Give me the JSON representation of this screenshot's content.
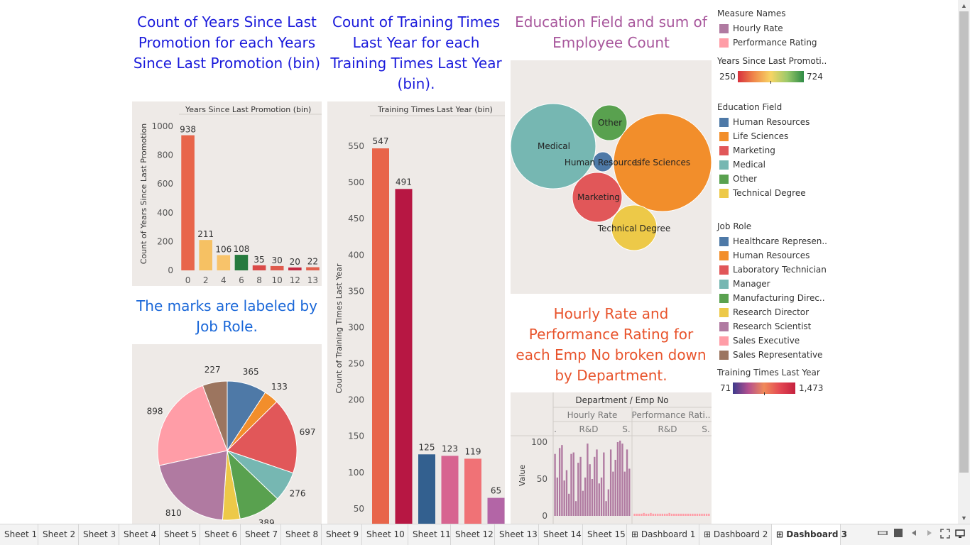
{
  "titles": {
    "promotion": "Count of Years Since Last Promotion for each Years Since Last Promotion (bin)",
    "training": "Count of Training Times Last Year for each Training Times Last Year (bin).",
    "education": "Education Field  and sum of Employee Count",
    "pie": "The marks are labeled by Job Role.",
    "hourly": "Hourly Rate and Performance Rating for each Emp No broken down by Department."
  },
  "colors": {
    "title_blue": "#1a1adb",
    "title_lightblue": "#1866d8",
    "title_purple": "#a8579c",
    "title_orange": "#e8532b",
    "panel_bg": "#eeeae7"
  },
  "chart_data": [
    {
      "id": "promotion",
      "type": "bar",
      "header": "Years Since Last Promotion (bin)",
      "ylabel": "Count of Years Since Last Promotion",
      "categories": [
        "0",
        "2",
        "4",
        "6",
        "8",
        "10",
        "12",
        "13"
      ],
      "values": [
        938,
        211,
        106,
        108,
        35,
        30,
        20,
        22
      ],
      "colors": [
        "#e8654a",
        "#f6c163",
        "#f8c36a",
        "#257a3e",
        "#da4a48",
        "#df5b4d",
        "#c5283f",
        "#e2614d"
      ],
      "yticks": [
        0,
        200,
        400,
        600,
        800,
        1000
      ],
      "ylim": [
        0,
        1000
      ]
    },
    {
      "id": "training",
      "type": "bar",
      "header": "Training Times Last Year (bin)",
      "ylabel": "Count of Training Times Last Year",
      "categories": [
        "",
        "",
        "",
        "",
        "",
        ""
      ],
      "values": [
        547,
        491,
        125,
        123,
        119,
        65
      ],
      "colors": [
        "#e8654a",
        "#b71743",
        "#33608f",
        "#d76490",
        "#f07276",
        "#b365a6"
      ],
      "yticks": [
        50,
        100,
        150,
        200,
        250,
        300,
        350,
        400,
        450,
        500,
        550
      ],
      "ylim": [
        0,
        550
      ]
    },
    {
      "id": "education",
      "type": "bubble",
      "bubbles": [
        {
          "label": "Medical",
          "color": "#76b7b2"
        },
        {
          "label": "Other",
          "color": "#59a14f"
        },
        {
          "label": "Human Resources",
          "color": "#4e79a7"
        },
        {
          "label": "Life Sciences",
          "color": "#f28e2b"
        },
        {
          "label": "Marketing",
          "color": "#e15759"
        },
        {
          "label": "Technical Degree",
          "color": "#edc948"
        }
      ]
    },
    {
      "id": "jobrole",
      "type": "pie",
      "slices": [
        {
          "role": "Healthcare Representative",
          "value": 365,
          "label": "365",
          "color": "#4e79a7"
        },
        {
          "role": "Human Resources",
          "value": 133,
          "label": "133",
          "color": "#f28e2b"
        },
        {
          "role": "Laboratory Technician",
          "value": 697,
          "label": "697",
          "color": "#e15759"
        },
        {
          "role": "Manager",
          "value": 276,
          "label": "276",
          "color": "#76b7b2"
        },
        {
          "role": "Manufacturing Director",
          "value": 389,
          "label": "389",
          "color": "#59a14f"
        },
        {
          "role": "Research Director",
          "value": 160,
          "label": "",
          "color": "#edc948"
        },
        {
          "role": "Research Scientist",
          "value": 810,
          "label": "810",
          "color": "#b07aa1"
        },
        {
          "role": "Sales Executive",
          "value": 898,
          "label": "898",
          "color": "#ff9da7"
        },
        {
          "role": "Sales Representative",
          "value": 227,
          "label": "227",
          "color": "#9c755f"
        }
      ]
    },
    {
      "id": "hourly",
      "type": "bar",
      "header": "Department / Emp No",
      "measure_headers": [
        "Hourly Rate",
        "Performance Rati.."
      ],
      "dept_headers": [
        ".",
        "R&D",
        "S.",
        "R&D",
        "S."
      ],
      "ylabel": "Value",
      "yticks": [
        0,
        50,
        100
      ],
      "ylim": [
        0,
        110
      ],
      "hourly_values": [
        84,
        52,
        92,
        96,
        48,
        62,
        30,
        84,
        86,
        20,
        72,
        80,
        34,
        52,
        98,
        70,
        50,
        80,
        90,
        44,
        52,
        86,
        20,
        36,
        90,
        60,
        76,
        100,
        102,
        98,
        60,
        90,
        64
      ],
      "perf_values": [
        3,
        3,
        3,
        3,
        4,
        3,
        3,
        4,
        3,
        3,
        3,
        3,
        3,
        3,
        3,
        4,
        3,
        3,
        3,
        3,
        3,
        3,
        3,
        3,
        3,
        3,
        3,
        3,
        3,
        3,
        3,
        3,
        3
      ],
      "hourly_color": "#b07aa1",
      "perf_color": "#ff9da7"
    }
  ],
  "legend": {
    "measure_names": {
      "title": "Measure Names",
      "items": [
        {
          "label": "Hourly Rate",
          "color": "#b07aa1"
        },
        {
          "label": "Performance Rating",
          "color": "#ff9da7"
        }
      ]
    },
    "years_promo": {
      "title": "Years Since Last Promoti..",
      "min": "250",
      "max": "724"
    },
    "education_field": {
      "title": "Education Field",
      "items": [
        {
          "label": "Human Resources",
          "color": "#4e79a7"
        },
        {
          "label": "Life Sciences",
          "color": "#f28e2b"
        },
        {
          "label": "Marketing",
          "color": "#e15759"
        },
        {
          "label": "Medical",
          "color": "#76b7b2"
        },
        {
          "label": "Other",
          "color": "#59a14f"
        },
        {
          "label": "Technical Degree",
          "color": "#edc948"
        }
      ]
    },
    "job_role": {
      "title": "Job Role",
      "items": [
        {
          "label": "Healthcare Represen..",
          "color": "#4e79a7"
        },
        {
          "label": "Human Resources",
          "color": "#f28e2b"
        },
        {
          "label": "Laboratory Technician",
          "color": "#e15759"
        },
        {
          "label": "Manager",
          "color": "#76b7b2"
        },
        {
          "label": "Manufacturing Direc..",
          "color": "#59a14f"
        },
        {
          "label": "Research Director",
          "color": "#edc948"
        },
        {
          "label": "Research Scientist",
          "color": "#b07aa1"
        },
        {
          "label": "Sales Executive",
          "color": "#ff9da7"
        },
        {
          "label": "Sales Representative",
          "color": "#9c755f"
        }
      ]
    },
    "training_times": {
      "title": "Training Times Last Year",
      "min": "71",
      "max": "1,473"
    }
  },
  "tabs": [
    {
      "label": "Sheet 1",
      "icon": ""
    },
    {
      "label": "Sheet 2",
      "icon": ""
    },
    {
      "label": "Sheet 3",
      "icon": ""
    },
    {
      "label": "Sheet 4",
      "icon": ""
    },
    {
      "label": "Sheet 5",
      "icon": ""
    },
    {
      "label": "Sheet 6",
      "icon": ""
    },
    {
      "label": "Sheet 7",
      "icon": ""
    },
    {
      "label": "Sheet 8",
      "icon": ""
    },
    {
      "label": "Sheet 9",
      "icon": ""
    },
    {
      "label": "Sheet 10",
      "icon": ""
    },
    {
      "label": "Sheet 11",
      "icon": ""
    },
    {
      "label": "Sheet 12",
      "icon": ""
    },
    {
      "label": "Sheet 13",
      "icon": ""
    },
    {
      "label": "Sheet 14",
      "icon": ""
    },
    {
      "label": "Sheet 15",
      "icon": ""
    },
    {
      "label": "Dashboard 1",
      "icon": "dashboard-icon"
    },
    {
      "label": "Dashboard 2",
      "icon": "dashboard-icon"
    },
    {
      "label": "Dashboard 3",
      "icon": "dashboard-icon",
      "active": true
    }
  ],
  "tab_controls": [
    "show-filmstrip-icon",
    "show-sheet-sorter-icon",
    "first-sheet-icon",
    "previous-sheet-icon",
    "next-sheet-icon",
    "last-sheet-icon",
    "presentation-mode-icon"
  ]
}
